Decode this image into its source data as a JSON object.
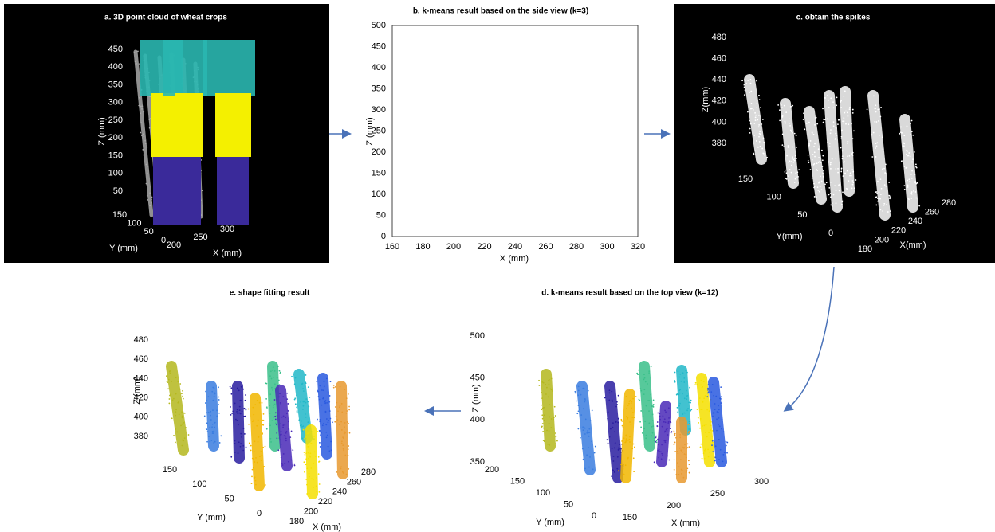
{
  "panels": [
    {
      "title": "a. 3D point cloud of wheat crops",
      "z_label": "Z (mm)",
      "y_label": "Y (mm)",
      "x_label": "X (mm)",
      "z_ticks": [
        50,
        100,
        150,
        200,
        250,
        300,
        350,
        400,
        450
      ],
      "y_ticks": [
        0,
        50,
        100,
        150
      ],
      "x_ticks": [
        200,
        250,
        300
      ]
    },
    {
      "title": "b. k-means result based on the side view (k=3)",
      "z_label": "Z (mm)",
      "x_label": "X (mm)",
      "z_ticks": [
        0,
        50,
        100,
        150,
        200,
        250,
        300,
        350,
        400,
        450,
        500
      ],
      "x_ticks": [
        160,
        180,
        200,
        220,
        240,
        260,
        280,
        300,
        320
      ]
    },
    {
      "title": "c. obtain the spikes",
      "z_label": "Z(mm)",
      "y_label": "Y(mm)",
      "x_label": "X(mm)",
      "z_ticks": [
        380,
        400,
        420,
        440,
        460,
        480
      ],
      "y_ticks": [
        0,
        50,
        100,
        150
      ],
      "x_ticks": [
        180,
        200,
        220,
        240,
        260,
        280
      ]
    },
    {
      "title": "d. k-means result based on the top view (k=12)",
      "z_label": "Z (mm)",
      "y_label": "Y (mm)",
      "x_label": "X (mm)",
      "z_ticks": [
        350,
        400,
        450,
        500
      ],
      "y_ticks": [
        0,
        50,
        100,
        150,
        200
      ],
      "x_ticks": [
        150,
        200,
        250,
        300
      ]
    },
    {
      "title": "e. shape fitting result",
      "z_label": "Z (mm)",
      "y_label": "Y (mm)",
      "x_label": "X (mm)",
      "z_ticks": [
        380,
        400,
        420,
        440,
        460,
        480
      ],
      "y_ticks": [
        0,
        50,
        100,
        150
      ],
      "x_ticks": [
        180,
        200,
        220,
        240,
        260,
        280
      ]
    }
  ]
}
